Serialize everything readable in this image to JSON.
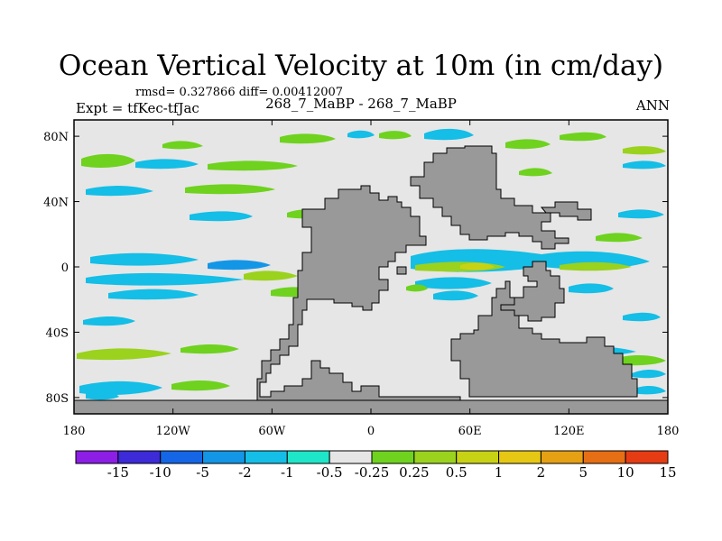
{
  "title": "Ocean Vertical Velocity at 10m (in cm/day)",
  "stats_text": "rmsd= 0.327866 diff= 0.00412007",
  "left_label": "Expt = tfKec-tfJac",
  "center_label": "268_7_MaBP - 268_7_MaBP",
  "right_label": "ANN",
  "map": {
    "lat_ticks": [
      "80N",
      "40N",
      "0",
      "40S",
      "80S"
    ],
    "lon_ticks": [
      "180",
      "120W",
      "60W",
      "0",
      "60E",
      "120E",
      "180"
    ],
    "ocean_color": "#e6e6e6",
    "land_color": "#999999"
  },
  "colorbar": {
    "colors": [
      "#8c1ee6",
      "#3c2bd7",
      "#1466e6",
      "#1496e6",
      "#14bee6",
      "#1ee6c8",
      "#e6e6e6",
      "#6ed21e",
      "#9ad21e",
      "#c8d214",
      "#e6c814",
      "#e6a014",
      "#e66e14",
      "#e63c14"
    ],
    "labels": [
      "-15",
      "-10",
      "-5",
      "-2",
      "-1",
      "-0.5",
      "-0.25",
      "0.25",
      "0.5",
      "1",
      "2",
      "5",
      "10",
      "15"
    ]
  }
}
